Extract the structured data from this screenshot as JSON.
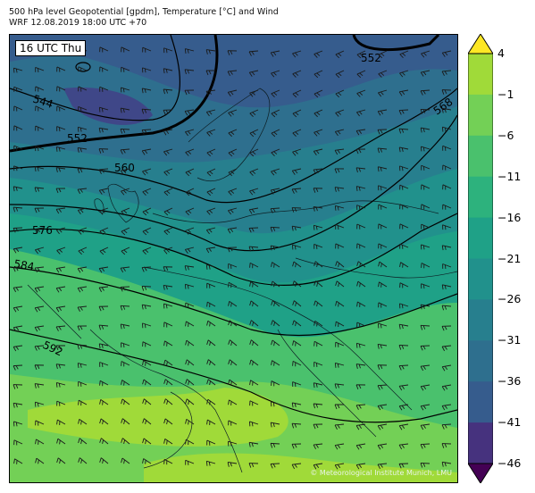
{
  "header": {
    "line1": "500 hPa level Geopotential [gpdm], Temperature [°C] and Wind",
    "line2": "WRF 12.08.2019 18:00 UTC +70"
  },
  "map": {
    "time_label": "16 UTC Thu",
    "credit": "© Meteorological Institute Munich, LMU",
    "contour_labels": [
      "552",
      "544",
      "552",
      "560",
      "568",
      "576",
      "584",
      "592"
    ]
  },
  "colorbar": {
    "levels": [
      "4",
      "−1",
      "−6",
      "−11",
      "−16",
      "−21",
      "−26",
      "−31",
      "−36",
      "−41",
      "−46"
    ],
    "colors": [
      "#fde725",
      "#d0e11c",
      "#a0da39",
      "#73d056",
      "#4ac16d",
      "#2db27d",
      "#1fa187",
      "#21918c",
      "#277f8e",
      "#2e6f8e",
      "#365c8d",
      "#3f4788",
      "#46327e",
      "#481c6e",
      "#440154"
    ],
    "band_colors": [
      "#e3e41b",
      "#a0da39",
      "#73d056",
      "#4ac16d",
      "#2db27d",
      "#1fa187",
      "#21918c",
      "#277f8e",
      "#2e6f8e",
      "#365c8d",
      "#46327e",
      "#481c6e"
    ]
  }
}
